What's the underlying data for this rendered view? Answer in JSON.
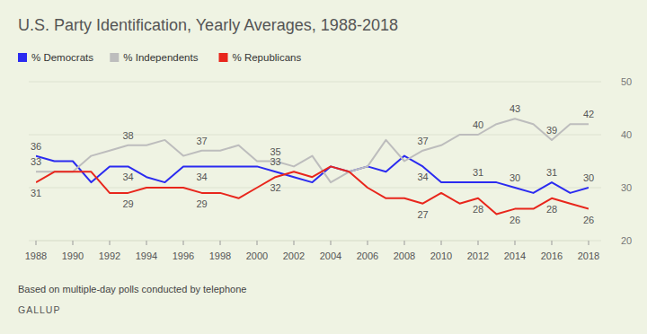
{
  "chart_data": {
    "type": "line",
    "title": "U.S. Party Identification, Yearly Averages, 1988-2018",
    "caption": "Based on multiple-day polls conducted by telephone",
    "source": "GALLUP",
    "x": [
      1988,
      1989,
      1990,
      1991,
      1992,
      1993,
      1994,
      1995,
      1996,
      1997,
      1998,
      1999,
      2000,
      2001,
      2002,
      2003,
      2004,
      2005,
      2006,
      2007,
      2008,
      2009,
      2010,
      2011,
      2012,
      2013,
      2014,
      2015,
      2016,
      2017,
      2018
    ],
    "xlim": [
      1988,
      2018
    ],
    "xticks": [
      1988,
      1990,
      1992,
      1994,
      1996,
      1998,
      2000,
      2002,
      2004,
      2006,
      2008,
      2010,
      2012,
      2014,
      2016,
      2018
    ],
    "ylim": [
      20,
      50
    ],
    "yticks": [
      20,
      30,
      40,
      50
    ],
    "grid": true,
    "legend": "top-left",
    "series": [
      {
        "name": "% Democrats",
        "color": "#2b2bf0",
        "values": [
          36,
          35,
          35,
          31,
          34,
          34,
          32,
          31,
          34,
          34,
          34,
          34,
          34,
          33,
          32,
          31,
          34,
          33,
          34,
          33,
          36,
          34,
          31,
          31,
          31,
          31,
          30,
          29,
          31,
          29,
          30
        ],
        "value_labels": [
          "36",
          null,
          null,
          null,
          null,
          "34",
          null,
          null,
          null,
          "34",
          null,
          null,
          null,
          "33",
          null,
          null,
          null,
          null,
          null,
          null,
          null,
          "34",
          null,
          null,
          "31",
          null,
          "30",
          null,
          "31",
          null,
          "30"
        ]
      },
      {
        "name": "% Independents",
        "color": "#bdbdbd",
        "values": [
          33,
          33,
          33,
          36,
          37,
          38,
          38,
          39,
          36,
          37,
          37,
          38,
          35,
          35,
          34,
          36,
          31,
          33,
          34,
          39,
          35,
          37,
          38,
          40,
          40,
          42,
          43,
          42,
          39,
          42,
          42
        ],
        "value_labels": [
          "33",
          null,
          null,
          null,
          null,
          "38",
          null,
          null,
          null,
          "37",
          null,
          null,
          null,
          "35",
          null,
          null,
          null,
          null,
          null,
          null,
          null,
          "37",
          null,
          null,
          "40",
          null,
          "43",
          null,
          "39",
          null,
          "42"
        ]
      },
      {
        "name": "% Republicans",
        "color": "#e8261c",
        "values": [
          31,
          33,
          33,
          33,
          29,
          29,
          30,
          30,
          30,
          29,
          29,
          28,
          30,
          32,
          33,
          32,
          34,
          33,
          30,
          28,
          28,
          27,
          29,
          27,
          28,
          25,
          26,
          26,
          28,
          27,
          26
        ],
        "value_labels": [
          "31",
          null,
          null,
          null,
          null,
          "29",
          null,
          null,
          null,
          "29",
          null,
          null,
          null,
          "32",
          null,
          null,
          null,
          null,
          null,
          null,
          null,
          "27",
          null,
          null,
          "28",
          null,
          "26",
          null,
          "28",
          null,
          "26"
        ]
      }
    ]
  }
}
